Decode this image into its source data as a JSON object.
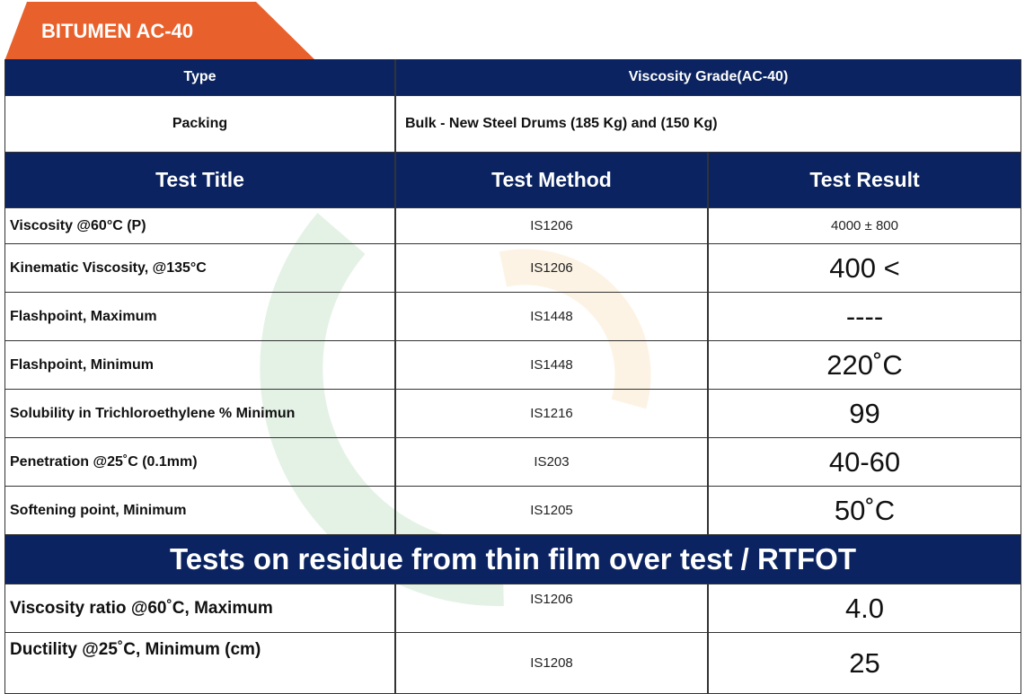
{
  "header": {
    "title": "BITUMEN AC-40"
  },
  "table": {
    "info": [
      [
        "Type",
        "Viscosity Grade(AC-40)"
      ],
      [
        "Packing",
        "Bulk - New Steel Drums (185 Kg) and (150 Kg)"
      ]
    ],
    "columns": [
      "Test Title",
      "Test Method",
      "Test Result"
    ],
    "rows": [
      [
        " Viscosity @60°C (P)",
        "IS1206",
        "4000 ± 800"
      ],
      [
        "Kinematic Viscosity, @135°C",
        "IS1206",
        "400  <"
      ],
      [
        "Flashpoint, Maximum",
        "IS1448",
        "----"
      ],
      [
        "Flashpoint, Minimum",
        "IS1448",
        "220˚C"
      ],
      [
        "Solubility in Trichloroethylene % Minimun",
        "IS1216",
        "99"
      ],
      [
        "Penetration @25˚C (0.1mm)",
        "IS203",
        "40-60"
      ],
      [
        "Softening point, Minimum",
        "IS1205",
        "50˚C"
      ]
    ],
    "section": "Tests on residue from thin film over test / RTFOT",
    "residue_rows": [
      [
        "Viscosity ratio @60˚C, Maximum",
        "IS1206",
        "4.0"
      ],
      [
        "Ductility @25˚C, Minimum (cm)",
        "IS1208",
        "25"
      ]
    ]
  }
}
